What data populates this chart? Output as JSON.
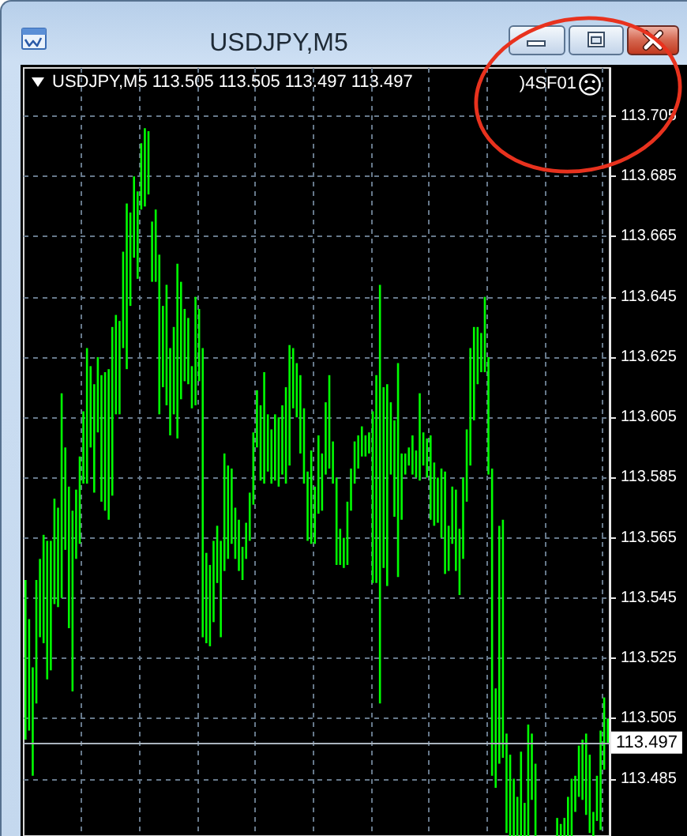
{
  "chart_data": {
    "type": "bar",
    "title": "USDJPY,M5",
    "subtitle": "USDJPY,M5 113.505 113.505 113.497 113.497",
    "annotations": [
      ")4SF01"
    ],
    "categories": [
      null,
      null,
      null,
      null,
      null,
      null,
      null,
      null,
      null,
      null,
      null,
      null,
      null,
      null,
      null,
      null,
      null,
      null,
      null,
      null,
      null,
      null,
      null,
      null,
      null,
      null,
      null,
      null,
      null,
      null,
      null,
      null,
      null,
      null,
      null,
      null,
      null,
      null,
      null,
      null,
      null,
      null,
      null,
      null,
      null,
      null,
      null,
      null,
      null,
      null,
      null,
      null,
      null,
      null,
      null,
      null,
      null,
      null,
      null,
      null,
      null,
      null,
      null,
      null,
      null,
      null,
      null,
      null,
      null,
      null,
      null,
      null,
      null,
      null,
      null,
      null,
      null,
      null,
      null,
      null,
      null,
      null,
      null,
      null,
      null,
      null,
      null,
      null,
      null,
      null,
      null,
      null,
      null,
      null,
      null,
      null,
      null,
      null,
      null,
      null,
      null,
      null,
      null,
      null,
      null,
      null,
      null,
      null,
      null,
      null,
      null,
      null,
      null,
      null,
      null,
      null,
      null,
      null,
      null,
      null,
      null,
      null,
      null,
      null,
      null,
      null,
      null,
      null,
      null,
      null,
      null,
      null,
      null,
      null,
      null,
      null,
      null,
      null,
      null,
      null,
      null,
      null,
      null,
      null,
      null,
      null,
      null,
      null,
      null,
      null,
      null,
      null,
      null,
      null,
      null,
      null,
      null,
      null,
      null,
      null,
      null,
      null
    ],
    "base": [
      113.498,
      113.501,
      113.486,
      113.51,
      113.532,
      113.53,
      113.518,
      113.521,
      113.543,
      113.542,
      113.545,
      113.561,
      113.535,
      113.514,
      113.558,
      113.563,
      113.583,
      113.583,
      113.595,
      113.58,
      113.6,
      113.577,
      113.574,
      113.571,
      113.579,
      113.606,
      113.606,
      113.628,
      113.621,
      113.642,
      113.658,
      113.651,
      113.674,
      113.675,
      113.679,
      113.65,
      113.65,
      113.606,
      113.615,
      113.609,
      113.599,
      113.606,
      113.598,
      113.611,
      113.617,
      113.616,
      113.608,
      113.609,
      113.617,
      113.532,
      113.53,
      113.529,
      113.537,
      113.55,
      113.532,
      113.554,
      113.558,
      113.563,
      113.558,
      113.554,
      113.551,
      113.558,
      113.564,
      113.576,
      113.595,
      113.584,
      113.583,
      113.587,
      113.583,
      113.584,
      113.582,
      113.586,
      113.583,
      113.589,
      113.608,
      113.605,
      113.593,
      113.583,
      113.564,
      113.563,
      113.563,
      113.573,
      113.574,
      113.586,
      113.588,
      113.583,
      113.556,
      113.556,
      113.555,
      113.556,
      113.574,
      113.583,
      113.588,
      113.592,
      113.592,
      113.593,
      113.55,
      113.55,
      113.51,
      113.555,
      113.549,
      113.586,
      113.572,
      113.552,
      113.571,
      113.586,
      113.589,
      113.586,
      113.585,
      113.584,
      113.589,
      113.585,
      113.571,
      113.569,
      113.57,
      113.565,
      113.553,
      113.554,
      113.563,
      113.554,
      113.546,
      113.558,
      113.577,
      113.589,
      113.604,
      113.616,
      113.62,
      113.62,
      113.586,
      113.486,
      113.482,
      113.49,
      113.492,
      113.467,
      113.466,
      113.466,
      113.466,
      113.466,
      113.466,
      113.466,
      113.478,
      113.466,
      null,
      null,
      null,
      null,
      null,
      113.466,
      113.466,
      113.466,
      113.466,
      113.466,
      113.474,
      113.479,
      113.478,
      113.473,
      113.467,
      113.466,
      113.471,
      113.468,
      113.488,
      113.497
    ],
    "values": [
      0.053,
      0.037,
      0.036,
      0.041,
      0.026,
      0.036,
      0.046,
      0.043,
      0.035,
      0.033,
      0.068,
      0.034,
      0.047,
      0.06,
      0.023,
      0.029,
      0.024,
      0.045,
      0.027,
      0.036,
      0.025,
      0.042,
      0.046,
      0.05,
      0.056,
      0.033,
      0.031,
      0.032,
      0.055,
      0.031,
      0.027,
      0.029,
      0.022,
      0.026,
      0.021,
      0.02,
      0.024,
      0.053,
      0.027,
      0.04,
      0.029,
      0.029,
      0.058,
      0.039,
      0.024,
      0.022,
      0.014,
      0.036,
      0.024,
      0.096,
      0.03,
      0.027,
      0.027,
      0.019,
      0.032,
      0.039,
      0.031,
      0.025,
      0.017,
      0.017,
      0.011,
      0.012,
      0.016,
      0.024,
      0.019,
      0.025,
      0.037,
      0.019,
      0.018,
      0.022,
      0.023,
      0.023,
      0.032,
      0.04,
      0.02,
      0.018,
      0.026,
      0.025,
      0.023,
      0.031,
      0.019,
      0.026,
      0.019,
      0.024,
      0.031,
      0.014,
      0.029,
      0.012,
      0.01,
      0.021,
      0.014,
      0.014,
      0.011,
      0.01,
      0.007,
      0.007,
      0.057,
      0.069,
      0.139,
      0.06,
      0.067,
      0.024,
      0.032,
      0.071,
      0.022,
      0.007,
      0.006,
      0.013,
      0.009,
      0.029,
      0.011,
      0.013,
      0.028,
      0.021,
      0.015,
      0.023,
      0.034,
      0.015,
      0.019,
      0.027,
      0.022,
      0.027,
      0.024,
      0.039,
      0.031,
      0.019,
      0.013,
      0.025,
      0.039,
      0.102,
      0.033,
      0.079,
      0.079,
      0.033,
      0.027,
      0.019,
      0.013,
      0.028,
      0.011,
      0.037,
      0.022,
      0.024,
      null,
      null,
      null,
      null,
      null,
      0.006,
      0.004,
      0.006,
      0.013,
      0.019,
      0.012,
      0.017,
      0.02,
      0.027,
      0.026,
      0.008,
      0.015,
      0.033,
      0.024,
      0.008
    ],
    "color": "#00ff00",
    "ylim": [
      113.466,
      113.721
    ],
    "yticks": [
      113.485,
      113.505,
      113.525,
      113.545,
      113.565,
      113.585,
      113.605,
      113.625,
      113.645,
      113.665,
      113.685,
      113.705
    ],
    "grid": true,
    "tick_labels": "y",
    "ref_lines": [
      {
        "axis": "y",
        "value": 113.497,
        "label": "113.497",
        "color": "#aab4be"
      }
    ]
  }
}
